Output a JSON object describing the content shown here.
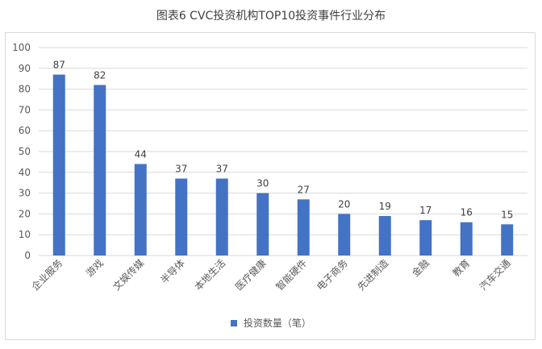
{
  "title": "图表6 CVC投资机构TOP10投资事件行业分布",
  "legend_label": "投资数量（笔）",
  "colors": {
    "bar": "#4472c4",
    "grid": "#d9d9d9"
  },
  "chart_data": {
    "type": "bar",
    "title": "图表6 CVC投资机构TOP10投资事件行业分布",
    "categories": [
      "企业服务",
      "游戏",
      "文娱传媒",
      "半导体",
      "本地生活",
      "医疗健康",
      "智能硬件",
      "电子商务",
      "先进制造",
      "金融",
      "教育",
      "汽车交通"
    ],
    "series": [
      {
        "name": "投资数量（笔）",
        "values": [
          87,
          82,
          44,
          37,
          37,
          30,
          27,
          20,
          19,
          17,
          16,
          15
        ]
      }
    ],
    "ylim": [
      0,
      100
    ],
    "yticks": [
      0,
      10,
      20,
      30,
      40,
      50,
      60,
      70,
      80,
      90,
      100
    ],
    "grid": true,
    "legend_position": "bottom"
  }
}
